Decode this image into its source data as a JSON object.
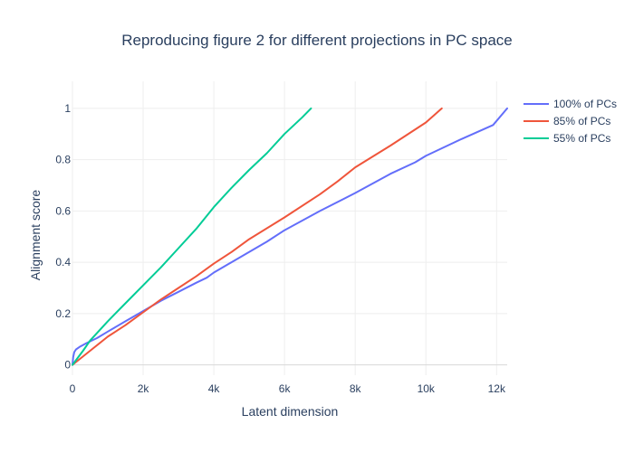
{
  "chart_data": {
    "type": "line",
    "title": "Reproducing figure 2 for different projections in PC space",
    "xlabel": "Latent dimension",
    "ylabel": "Alignment score",
    "xlim": [
      0,
      12300
    ],
    "ylim": [
      -0.04,
      1.07
    ],
    "x_ticks": [
      0,
      2000,
      4000,
      6000,
      8000,
      10000,
      12000
    ],
    "x_tick_labels": [
      "0",
      "2k",
      "4k",
      "6k",
      "8k",
      "10k",
      "12k"
    ],
    "y_ticks": [
      0,
      0.2,
      0.4,
      0.6,
      0.8,
      1
    ],
    "y_tick_labels": [
      "0",
      "0.2",
      "0.4",
      "0.6",
      "0.8",
      "1"
    ],
    "grid": true,
    "legend_position": "top-right",
    "series": [
      {
        "name": "100% of PCs",
        "color": "#636efa",
        "x": [
          0,
          20,
          50,
          100,
          200,
          400,
          700,
          1000,
          1500,
          2000,
          2500,
          3000,
          3500,
          3800,
          4000,
          4500,
          5000,
          5500,
          6000,
          7000,
          8000,
          9000,
          9700,
          10000,
          11000,
          11900,
          12300
        ],
        "y": [
          0,
          0.03,
          0.05,
          0.06,
          0.07,
          0.085,
          0.105,
          0.13,
          0.17,
          0.21,
          0.25,
          0.285,
          0.32,
          0.34,
          0.36,
          0.4,
          0.44,
          0.48,
          0.525,
          0.6,
          0.67,
          0.745,
          0.79,
          0.815,
          0.88,
          0.935,
          1.0
        ]
      },
      {
        "name": "85% of PCs",
        "color": "#ef553b",
        "x": [
          0,
          500,
          1000,
          1500,
          2000,
          2500,
          3000,
          3500,
          4000,
          4500,
          5000,
          6000,
          7000,
          7500,
          8000,
          9000,
          10000,
          10450
        ],
        "y": [
          0,
          0.055,
          0.11,
          0.155,
          0.205,
          0.255,
          0.3,
          0.345,
          0.395,
          0.44,
          0.49,
          0.575,
          0.665,
          0.715,
          0.77,
          0.855,
          0.945,
          1.0
        ]
      },
      {
        "name": "55% of PCs",
        "color": "#00cc96",
        "x": [
          0,
          300,
          500,
          1000,
          1500,
          2000,
          2500,
          3000,
          3500,
          4000,
          4500,
          5000,
          5500,
          6000,
          6500,
          6750
        ],
        "y": [
          0,
          0.055,
          0.095,
          0.17,
          0.24,
          0.31,
          0.38,
          0.455,
          0.53,
          0.615,
          0.69,
          0.76,
          0.825,
          0.9,
          0.965,
          1.0
        ]
      }
    ]
  }
}
